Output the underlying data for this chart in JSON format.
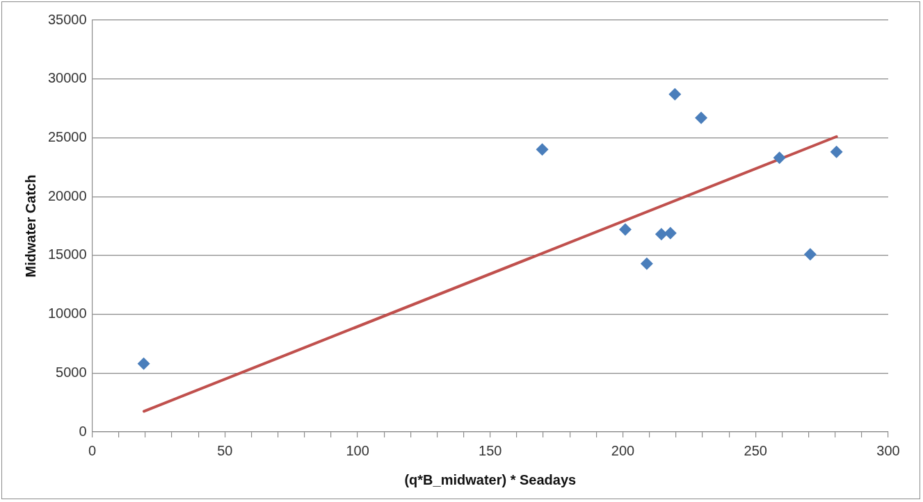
{
  "chart_data": {
    "type": "scatter",
    "xlabel": "(q*B_midwater) * Seadays",
    "ylabel": "Midwater Catch",
    "xlim": [
      0,
      300
    ],
    "ylim": [
      0,
      35000
    ],
    "xticks": [
      0,
      {
        "value": 10,
        "label": null
      },
      {
        "value": 20,
        "label": null
      },
      {
        "value": 30,
        "label": null
      },
      {
        "value": 40,
        "label": null
      },
      50,
      {
        "value": 60,
        "label": null
      },
      {
        "value": 70,
        "label": null
      },
      {
        "value": 80,
        "label": null
      },
      {
        "value": 90,
        "label": null
      },
      100,
      {
        "value": 110,
        "label": null
      },
      {
        "value": 120,
        "label": null
      },
      {
        "value": 130,
        "label": null
      },
      {
        "value": 140,
        "label": null
      },
      150,
      {
        "value": 160,
        "label": null
      },
      {
        "value": 170,
        "label": null
      },
      {
        "value": 180,
        "label": null
      },
      {
        "value": 190,
        "label": null
      },
      200,
      {
        "value": 210,
        "label": null
      },
      {
        "value": 220,
        "label": null
      },
      {
        "value": 230,
        "label": null
      },
      {
        "value": 240,
        "label": null
      },
      250,
      {
        "value": 260,
        "label": null
      },
      {
        "value": 270,
        "label": null
      },
      {
        "value": 280,
        "label": null
      },
      {
        "value": 290,
        "label": null
      },
      300
    ],
    "yticks": [
      0,
      5000,
      10000,
      15000,
      20000,
      25000,
      30000,
      35000
    ],
    "grid": "y",
    "legend": false,
    "marker": "diamond",
    "series": [
      {
        "color": "#4a7ebb",
        "x": [
          19.4,
          169.6,
          200.9,
          209,
          214.5,
          217.9,
          219.6,
          229.5,
          259,
          270.6,
          280.5
        ],
        "values": [
          5800,
          24000,
          17200,
          14300,
          16800,
          16900,
          28700,
          26700,
          23300,
          15100,
          23800
        ]
      },
      {
        "type": "line",
        "marker": "none",
        "color": "#c0504d",
        "x": [
          19.5,
          280.5
        ],
        "values": [
          1750,
          25100
        ]
      }
    ]
  }
}
